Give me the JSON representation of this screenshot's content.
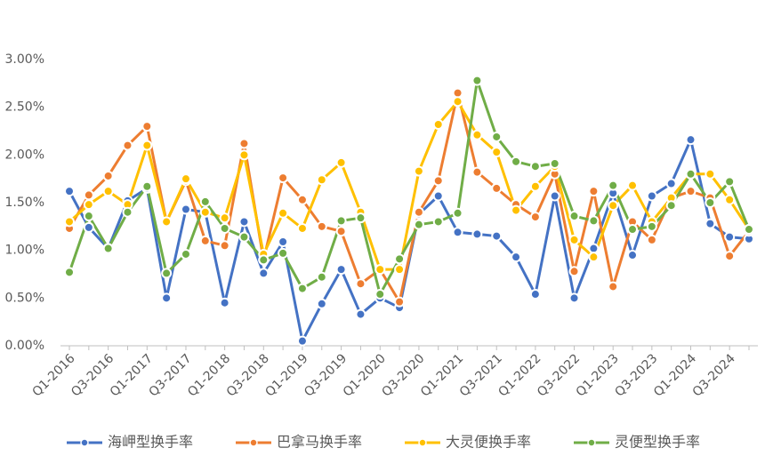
{
  "chart_data": {
    "type": "line",
    "categories": [
      "Q1-2016",
      null,
      "Q3-2016",
      null,
      "Q1-2017",
      null,
      "Q3-2017",
      null,
      "Q1-2018",
      null,
      "Q3-2018",
      null,
      "Q1-2019",
      null,
      "Q3-2019",
      null,
      "Q1-2020",
      null,
      "Q3-2020",
      null,
      "Q1-2021",
      null,
      "Q3-2021",
      null,
      "Q1-2022",
      null,
      "Q3-2022",
      null,
      "Q1-2023",
      null,
      "Q3-2023",
      null,
      "Q1-2024",
      null,
      "Q3-2024",
      null
    ],
    "series": [
      {
        "name": "海岬型换手率",
        "color": "#4472c4",
        "values": [
          1.62,
          1.24,
          1.02,
          1.52,
          1.65,
          0.5,
          1.43,
          1.4,
          0.45,
          1.3,
          0.76,
          1.09,
          0.05,
          0.44,
          0.8,
          0.33,
          0.5,
          0.4,
          1.38,
          1.57,
          1.19,
          1.17,
          1.15,
          0.93,
          0.54,
          1.57,
          0.5,
          1.02,
          1.6,
          0.95,
          1.57,
          1.7,
          2.16,
          1.28,
          1.14,
          1.12
        ]
      },
      {
        "name": "巴拿马换手率",
        "color": "#ed7d31",
        "values": [
          1.23,
          1.58,
          1.78,
          2.1,
          2.3,
          1.3,
          1.73,
          1.1,
          1.05,
          2.12,
          0.9,
          1.76,
          1.53,
          1.25,
          1.2,
          0.65,
          0.8,
          0.46,
          1.4,
          1.73,
          2.65,
          1.82,
          1.65,
          1.48,
          1.35,
          1.8,
          0.78,
          1.62,
          0.62,
          1.3,
          1.11,
          1.55,
          1.62,
          1.55,
          0.94,
          1.2
        ]
      },
      {
        "name": "大灵便换手率",
        "color": "#ffc000",
        "values": [
          1.3,
          1.48,
          1.62,
          1.48,
          2.1,
          1.3,
          1.75,
          1.4,
          1.34,
          2.0,
          0.96,
          1.39,
          1.23,
          1.74,
          1.92,
          1.4,
          0.8,
          0.8,
          1.83,
          2.32,
          2.56,
          2.21,
          2.03,
          1.42,
          1.67,
          1.88,
          1.11,
          0.93,
          1.47,
          1.68,
          1.3,
          1.55,
          1.8,
          1.8,
          1.53,
          1.22
        ]
      },
      {
        "name": "灵便型换手率",
        "color": "#70ad47",
        "values": [
          0.77,
          1.36,
          1.02,
          1.4,
          1.67,
          0.76,
          0.96,
          1.51,
          1.23,
          1.14,
          0.9,
          0.97,
          0.6,
          0.72,
          1.31,
          1.34,
          0.54,
          0.91,
          1.27,
          1.3,
          1.39,
          2.78,
          2.19,
          1.93,
          1.88,
          1.91,
          1.36,
          1.31,
          1.68,
          1.22,
          1.25,
          1.47,
          1.8,
          1.5,
          1.72,
          1.22
        ]
      }
    ],
    "ylim": [
      0,
      3
    ],
    "yticks": [
      {
        "value": 0,
        "label": "0.00%"
      },
      {
        "value": 0.5,
        "label": "0.50%"
      },
      {
        "value": 1,
        "label": "1.00%"
      },
      {
        "value": 1.5,
        "label": "1.50%"
      },
      {
        "value": 2,
        "label": "2.00%"
      },
      {
        "value": 2.5,
        "label": "2.50%"
      },
      {
        "value": 3,
        "label": "3.00%"
      }
    ],
    "grid": false,
    "legend": "bottom"
  }
}
